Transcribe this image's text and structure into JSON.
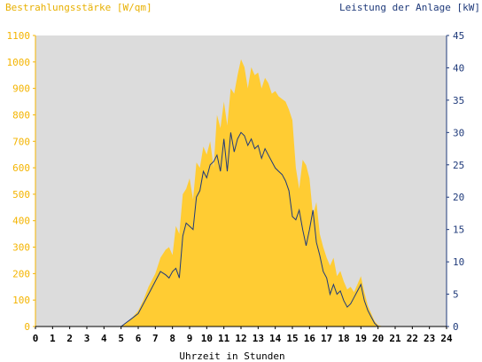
{
  "chart_data": {
    "type": "area",
    "y_left_label": "Bestrahlungsstärke [W/qm]",
    "y_right_label": "Leistung der Anlage [kW]",
    "x_label": "Uhrzeit in Stunden",
    "x_range": [
      0,
      24
    ],
    "y_left_range": [
      0,
      1100
    ],
    "y_right_range": [
      0,
      45
    ],
    "x_ticks": [
      "0",
      "1",
      "2",
      "3",
      "4",
      "5",
      "6",
      "7",
      "8",
      "9",
      "10",
      "11",
      "12",
      "13",
      "14",
      "15",
      "16",
      "17",
      "18",
      "19",
      "20",
      "21",
      "22",
      "23",
      "24"
    ],
    "y_left_ticks": [
      "0",
      "100",
      "200",
      "300",
      "400",
      "500",
      "600",
      "700",
      "800",
      "900",
      "1000",
      "1100"
    ],
    "y_right_ticks": [
      "0",
      "5",
      "10",
      "15",
      "20",
      "25",
      "30",
      "35",
      "40",
      "45"
    ],
    "colors": {
      "irradiance": "#ffcc33",
      "power": "#1f3a7a",
      "plot_bg": "#dcdcdc",
      "left_axis": "#f4b400",
      "right_axis": "#1f3a7a"
    },
    "series": [
      {
        "name": "Bestrahlungsstärke [W/qm]",
        "axis": "left",
        "x": [
          0,
          5.0,
          5.3,
          5.6,
          6.0,
          6.3,
          6.6,
          7.0,
          7.3,
          7.6,
          7.8,
          8.0,
          8.2,
          8.4,
          8.6,
          8.8,
          9.0,
          9.2,
          9.4,
          9.6,
          9.8,
          10.0,
          10.2,
          10.4,
          10.6,
          10.8,
          11.0,
          11.2,
          11.4,
          11.6,
          11.8,
          12.0,
          12.2,
          12.4,
          12.6,
          12.8,
          13.0,
          13.2,
          13.4,
          13.6,
          13.8,
          14.0,
          14.2,
          14.4,
          14.6,
          14.8,
          15.0,
          15.2,
          15.4,
          15.6,
          15.8,
          16.0,
          16.2,
          16.4,
          16.6,
          16.8,
          17.0,
          17.2,
          17.4,
          17.6,
          17.8,
          18.0,
          18.2,
          18.4,
          18.6,
          18.8,
          19.0,
          19.2,
          19.4,
          19.6,
          19.8,
          20.0,
          20.3,
          24
        ],
        "values": [
          0,
          0,
          15,
          30,
          60,
          100,
          150,
          200,
          260,
          290,
          300,
          270,
          380,
          350,
          500,
          520,
          560,
          480,
          620,
          600,
          680,
          650,
          700,
          600,
          800,
          750,
          850,
          760,
          900,
          880,
          950,
          1010,
          980,
          900,
          980,
          950,
          960,
          900,
          940,
          920,
          880,
          890,
          870,
          860,
          850,
          820,
          780,
          600,
          520,
          630,
          610,
          560,
          420,
          470,
          350,
          300,
          260,
          230,
          260,
          190,
          210,
          170,
          140,
          150,
          130,
          160,
          190,
          130,
          80,
          50,
          20,
          5,
          0,
          0
        ]
      },
      {
        "name": "Leistung der Anlage [kW]",
        "axis": "right",
        "x": [
          0,
          5.0,
          5.3,
          5.6,
          6.0,
          6.3,
          6.6,
          7.0,
          7.3,
          7.6,
          7.8,
          8.0,
          8.2,
          8.4,
          8.6,
          8.8,
          9.0,
          9.2,
          9.4,
          9.6,
          9.8,
          10.0,
          10.2,
          10.4,
          10.6,
          10.8,
          11.0,
          11.2,
          11.4,
          11.6,
          11.8,
          12.0,
          12.2,
          12.4,
          12.6,
          12.8,
          13.0,
          13.2,
          13.4,
          13.6,
          13.8,
          14.0,
          14.2,
          14.4,
          14.6,
          14.8,
          15.0,
          15.2,
          15.4,
          15.6,
          15.8,
          16.0,
          16.2,
          16.4,
          16.6,
          16.8,
          17.0,
          17.2,
          17.4,
          17.6,
          17.8,
          18.0,
          18.2,
          18.4,
          18.6,
          18.8,
          19.0,
          19.2,
          19.4,
          19.6,
          19.8,
          20.0,
          20.3,
          24
        ],
        "values": [
          0,
          0,
          0.6,
          1.2,
          2.0,
          3.5,
          5.0,
          7.0,
          8.5,
          8.0,
          7.5,
          8.5,
          9.0,
          7.5,
          14,
          16,
          15.5,
          15,
          20,
          21,
          24,
          23,
          25,
          25.5,
          26.5,
          24,
          29,
          24,
          30,
          27,
          29,
          30,
          29.5,
          28,
          29,
          27.5,
          28,
          26,
          27.5,
          26.5,
          25.5,
          24.5,
          24,
          23.5,
          22.5,
          21,
          17,
          16.5,
          18,
          15,
          12.5,
          15,
          18,
          13,
          11,
          8.5,
          7.5,
          5,
          6.5,
          5,
          5.5,
          4,
          3,
          3.5,
          4.5,
          5.5,
          6.5,
          4,
          2.5,
          1.5,
          0.5,
          0,
          0,
          0
        ]
      }
    ]
  }
}
